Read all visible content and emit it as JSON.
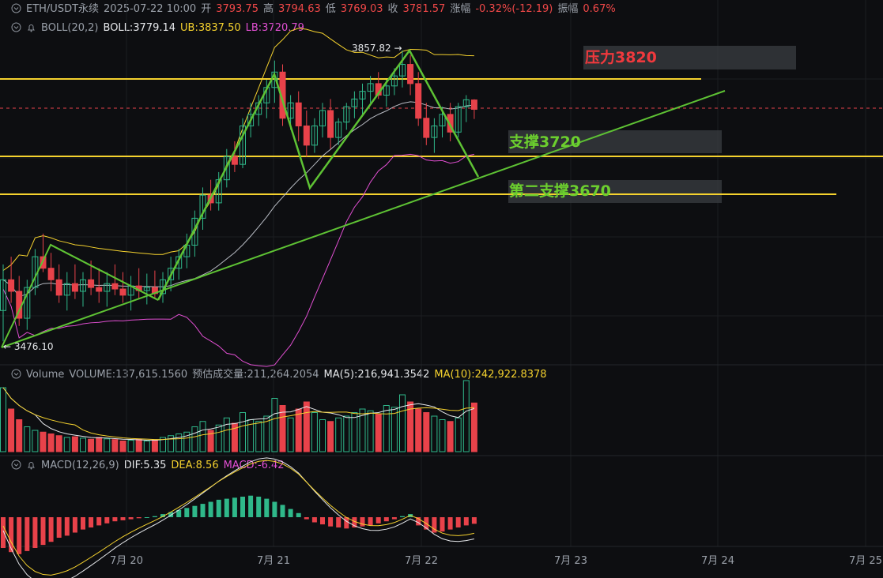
{
  "header": {
    "symbol": "ETH/USDT永续",
    "datetime": "2025-07-22 10:00",
    "open_label": "开",
    "open": "3793.75",
    "high_label": "高",
    "high": "3794.63",
    "low_label": "低",
    "low": "3769.03",
    "close_label": "收",
    "close": "3781.57",
    "change_label": "涨幅",
    "change": "-0.32%(-12.19)",
    "amplitude_label": "振幅",
    "amplitude": "0.67%"
  },
  "boll_legend": {
    "name": "BOLL(20,2)",
    "boll": "BOLL:3779.14",
    "ub": "UB:3837.50",
    "lb": "LB:3720.79"
  },
  "volume_legend": {
    "name": "Volume",
    "volume": "VOLUME:137,615.1560",
    "estimate": "预估成交量:211,264.2054",
    "ma5": "MA(5):216,941.3542",
    "ma10": "MA(10):242,922.8378"
  },
  "macd_legend": {
    "name": "MACD(12,26,9)",
    "dif": "DIF:5.35",
    "dea": "DEA:8.56",
    "macd": "MACD:-6.42"
  },
  "colors": {
    "up": "#2fb88a",
    "down": "#e8424a",
    "boll_mid": "#b8bcc4",
    "boll_ub": "#f5d22e",
    "boll_lb": "#e14fd2",
    "level": "#f5d22e",
    "pattern": "#5ec234",
    "resistance_text": "#f0393d",
    "support_text": "#6ccf2e"
  },
  "annotations": {
    "resistance": "压力3820",
    "support": "支撑3720",
    "support2": "第二支撑3670",
    "high_marker": "3857.82 →",
    "low_marker": "← 3476.10"
  },
  "chart_data": {
    "type": "candlestick",
    "x_ticks": [
      "7月 20",
      "7月 21",
      "7月 22",
      "7月 23",
      "7月 24",
      "7月 25"
    ],
    "price_levels": {
      "resistance": 3820,
      "support": 3720,
      "second_support": 3670,
      "ub_line": 3837.5
    },
    "extremes": {
      "high": 3857.82,
      "low": 3476.1
    },
    "ohlc": [
      [
        3520,
        3580,
        3480,
        3560
      ],
      [
        3560,
        3590,
        3530,
        3545
      ],
      [
        3545,
        3565,
        3500,
        3510
      ],
      [
        3510,
        3560,
        3495,
        3550
      ],
      [
        3550,
        3600,
        3540,
        3590
      ],
      [
        3590,
        3620,
        3570,
        3575
      ],
      [
        3575,
        3595,
        3545,
        3560
      ],
      [
        3560,
        3580,
        3530,
        3540
      ],
      [
        3540,
        3570,
        3520,
        3555
      ],
      [
        3555,
        3580,
        3535,
        3545
      ],
      [
        3545,
        3570,
        3525,
        3560
      ],
      [
        3560,
        3585,
        3540,
        3550
      ],
      [
        3550,
        3575,
        3530,
        3545
      ],
      [
        3545,
        3570,
        3525,
        3555
      ],
      [
        3555,
        3580,
        3540,
        3548
      ],
      [
        3548,
        3570,
        3530,
        3540
      ],
      [
        3540,
        3565,
        3520,
        3552
      ],
      [
        3552,
        3575,
        3535,
        3546
      ],
      [
        3546,
        3568,
        3528,
        3550
      ],
      [
        3550,
        3572,
        3535,
        3542
      ],
      [
        3542,
        3570,
        3530,
        3560
      ],
      [
        3560,
        3590,
        3545,
        3575
      ],
      [
        3575,
        3600,
        3560,
        3590
      ],
      [
        3590,
        3620,
        3575,
        3605
      ],
      [
        3605,
        3650,
        3590,
        3640
      ],
      [
        3640,
        3680,
        3625,
        3670
      ],
      [
        3670,
        3690,
        3650,
        3660
      ],
      [
        3660,
        3700,
        3650,
        3690
      ],
      [
        3690,
        3730,
        3680,
        3720
      ],
      [
        3720,
        3740,
        3700,
        3710
      ],
      [
        3710,
        3770,
        3705,
        3760
      ],
      [
        3760,
        3790,
        3745,
        3775
      ],
      [
        3775,
        3800,
        3760,
        3790
      ],
      [
        3790,
        3820,
        3770,
        3810
      ],
      [
        3810,
        3845,
        3790,
        3830
      ],
      [
        3830,
        3840,
        3760,
        3770
      ],
      [
        3770,
        3800,
        3755,
        3790
      ],
      [
        3790,
        3805,
        3740,
        3760
      ],
      [
        3760,
        3780,
        3720,
        3735
      ],
      [
        3735,
        3770,
        3725,
        3760
      ],
      [
        3760,
        3790,
        3745,
        3780
      ],
      [
        3780,
        3795,
        3730,
        3745
      ],
      [
        3745,
        3770,
        3735,
        3765
      ],
      [
        3765,
        3790,
        3755,
        3785
      ],
      [
        3785,
        3805,
        3770,
        3795
      ],
      [
        3795,
        3815,
        3775,
        3805
      ],
      [
        3805,
        3825,
        3790,
        3815
      ],
      [
        3815,
        3830,
        3795,
        3800
      ],
      [
        3800,
        3820,
        3785,
        3812
      ],
      [
        3812,
        3835,
        3800,
        3825
      ],
      [
        3825,
        3858,
        3810,
        3840
      ],
      [
        3840,
        3852,
        3800,
        3815
      ],
      [
        3815,
        3830,
        3760,
        3770
      ],
      [
        3770,
        3790,
        3735,
        3745
      ],
      [
        3745,
        3770,
        3725,
        3760
      ],
      [
        3760,
        3785,
        3745,
        3775
      ],
      [
        3775,
        3790,
        3740,
        3752
      ],
      [
        3752,
        3790,
        3745,
        3785
      ],
      [
        3785,
        3800,
        3765,
        3794
      ],
      [
        3793.75,
        3794.63,
        3769.03,
        3781.57
      ]
    ],
    "volume": [
      180,
      120,
      90,
      70,
      60,
      55,
      50,
      45,
      40,
      42,
      38,
      35,
      40,
      36,
      34,
      30,
      32,
      35,
      30,
      33,
      40,
      45,
      50,
      55,
      70,
      85,
      60,
      75,
      95,
      80,
      110,
      90,
      85,
      100,
      150,
      130,
      95,
      120,
      140,
      110,
      90,
      85,
      95,
      100,
      110,
      120,
      115,
      105,
      130,
      125,
      160,
      140,
      120,
      110,
      100,
      90,
      85,
      95,
      200,
      137
    ],
    "macd_hist": [
      -30,
      -34,
      -36,
      -33,
      -30,
      -27,
      -24,
      -20,
      -18,
      -15,
      -12,
      -10,
      -8,
      -6,
      -4,
      -3,
      -2,
      -1,
      0,
      1,
      3,
      5,
      7,
      9,
      11,
      13,
      15,
      17,
      18,
      19,
      20,
      21,
      20,
      18,
      15,
      12,
      8,
      4,
      -2,
      -5,
      -7,
      -9,
      -10,
      -11,
      -10,
      -9,
      -8,
      -6,
      -4,
      -2,
      1,
      3,
      -8,
      -12,
      -15,
      -14,
      -12,
      -10,
      -8,
      -6.42
    ]
  }
}
